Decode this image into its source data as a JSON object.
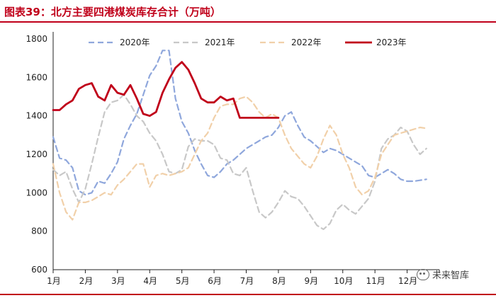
{
  "figure_title": "图表39：北方主要四港煤炭库存合计（万吨）",
  "watermark": "未来智库",
  "colors": {
    "title": "#c0001a",
    "rule": "#c0001a"
  },
  "chart_data": {
    "type": "line",
    "ylim": [
      600,
      1800
    ],
    "yticks": [
      600,
      800,
      1000,
      1200,
      1400,
      1600,
      1800
    ],
    "xlim": [
      1,
      13
    ],
    "xticks": [
      "1月",
      "2月",
      "3月",
      "4月",
      "5月",
      "6月",
      "7月",
      "8月",
      "9月",
      "10月",
      "11月",
      "12月"
    ],
    "series": [
      {
        "name": "2020年",
        "color": "#8fa7dc",
        "dash": "8,5",
        "width": 2.2,
        "x": [
          1.0,
          1.2,
          1.4,
          1.6,
          1.8,
          2.0,
          2.2,
          2.4,
          2.6,
          2.8,
          3.0,
          3.2,
          3.4,
          3.6,
          3.8,
          4.0,
          4.2,
          4.4,
          4.6,
          4.8,
          5.0,
          5.2,
          5.4,
          5.6,
          5.8,
          6.0,
          6.2,
          6.4,
          6.6,
          6.8,
          7.0,
          7.2,
          7.4,
          7.6,
          7.8,
          8.0,
          8.2,
          8.4,
          8.6,
          8.8,
          9.0,
          9.2,
          9.4,
          9.6,
          9.8,
          10.0,
          10.2,
          10.4,
          10.6,
          10.8,
          11.0,
          11.2,
          11.4,
          11.6,
          11.8,
          12.0,
          12.2,
          12.4,
          12.6
        ],
        "values": [
          1290,
          1180,
          1170,
          1130,
          1010,
          990,
          1000,
          1060,
          1050,
          1100,
          1160,
          1280,
          1350,
          1410,
          1510,
          1610,
          1660,
          1740,
          1740,
          1490,
          1370,
          1310,
          1220,
          1150,
          1090,
          1080,
          1110,
          1150,
          1170,
          1200,
          1230,
          1250,
          1270,
          1290,
          1300,
          1340,
          1400,
          1420,
          1350,
          1290,
          1270,
          1240,
          1210,
          1230,
          1220,
          1200,
          1180,
          1160,
          1140,
          1090,
          1080,
          1100,
          1120,
          1100,
          1070,
          1060,
          1060,
          1065,
          1070
        ]
      },
      {
        "name": "2021年",
        "color": "#c8c8c8",
        "dash": "8,5",
        "width": 2.2,
        "x": [
          1.0,
          1.2,
          1.4,
          1.6,
          1.8,
          2.0,
          2.2,
          2.4,
          2.6,
          2.8,
          3.0,
          3.2,
          3.4,
          3.6,
          3.8,
          4.0,
          4.2,
          4.4,
          4.6,
          4.8,
          5.0,
          5.2,
          5.4,
          5.6,
          5.8,
          6.0,
          6.2,
          6.4,
          6.6,
          6.8,
          7.0,
          7.2,
          7.4,
          7.6,
          7.8,
          8.0,
          8.2,
          8.4,
          8.6,
          8.8,
          9.0,
          9.2,
          9.4,
          9.6,
          9.8,
          10.0,
          10.2,
          10.4,
          10.6,
          10.8,
          11.0,
          11.2,
          11.4,
          11.6,
          11.8,
          12.0,
          12.2,
          12.4,
          12.6
        ],
        "values": [
          1120,
          1090,
          1110,
          1020,
          950,
          1020,
          1150,
          1290,
          1420,
          1470,
          1480,
          1510,
          1460,
          1400,
          1370,
          1310,
          1270,
          1200,
          1110,
          1100,
          1120,
          1240,
          1280,
          1270,
          1270,
          1250,
          1180,
          1170,
          1100,
          1090,
          1130,
          1010,
          900,
          870,
          900,
          950,
          1010,
          980,
          970,
          930,
          880,
          830,
          810,
          840,
          910,
          940,
          910,
          890,
          930,
          970,
          1060,
          1230,
          1280,
          1300,
          1340,
          1320,
          1250,
          1200,
          1230
        ]
      },
      {
        "name": "2022年",
        "color": "#f1d0a9",
        "dash": "8,5",
        "width": 2.2,
        "x": [
          1.0,
          1.2,
          1.4,
          1.6,
          1.8,
          2.0,
          2.2,
          2.4,
          2.6,
          2.8,
          3.0,
          3.2,
          3.4,
          3.6,
          3.8,
          4.0,
          4.2,
          4.4,
          4.6,
          4.8,
          5.0,
          5.2,
          5.4,
          5.6,
          5.8,
          6.0,
          6.2,
          6.4,
          6.6,
          6.8,
          7.0,
          7.2,
          7.4,
          7.6,
          7.8,
          8.0,
          8.2,
          8.4,
          8.6,
          8.8,
          9.0,
          9.2,
          9.4,
          9.6,
          9.8,
          10.0,
          10.2,
          10.4,
          10.6,
          10.8,
          11.0,
          11.2,
          11.4,
          11.6,
          11.8,
          12.0,
          12.2,
          12.4,
          12.6
        ],
        "values": [
          1150,
          1000,
          900,
          860,
          950,
          950,
          960,
          980,
          1000,
          990,
          1040,
          1070,
          1110,
          1150,
          1150,
          1030,
          1090,
          1100,
          1090,
          1100,
          1110,
          1130,
          1200,
          1270,
          1310,
          1390,
          1450,
          1460,
          1460,
          1490,
          1500,
          1470,
          1420,
          1390,
          1410,
          1390,
          1300,
          1230,
          1190,
          1150,
          1130,
          1190,
          1280,
          1350,
          1300,
          1200,
          1130,
          1030,
          990,
          1010,
          1080,
          1200,
          1250,
          1300,
          1310,
          1320,
          1330,
          1340,
          1335
        ]
      },
      {
        "name": "2023年",
        "color": "#c0001a",
        "dash": "",
        "width": 2.8,
        "x": [
          1.0,
          1.2,
          1.4,
          1.6,
          1.8,
          2.0,
          2.2,
          2.4,
          2.6,
          2.8,
          3.0,
          3.2,
          3.4,
          3.6,
          3.8,
          4.0,
          4.2,
          4.4,
          4.6,
          4.8,
          5.0,
          5.2,
          5.4,
          5.6,
          5.8,
          6.0,
          6.2,
          6.4,
          6.6,
          6.8,
          7.0,
          7.2,
          7.4,
          7.6,
          7.8,
          8.0
        ],
        "values": [
          1430,
          1430,
          1460,
          1480,
          1540,
          1560,
          1570,
          1500,
          1480,
          1560,
          1520,
          1510,
          1560,
          1490,
          1410,
          1400,
          1420,
          1520,
          1590,
          1650,
          1680,
          1640,
          1570,
          1490,
          1470,
          1470,
          1500,
          1480,
          1490,
          1390,
          1390,
          1390,
          1390,
          1390,
          1390,
          1390
        ]
      }
    ]
  }
}
